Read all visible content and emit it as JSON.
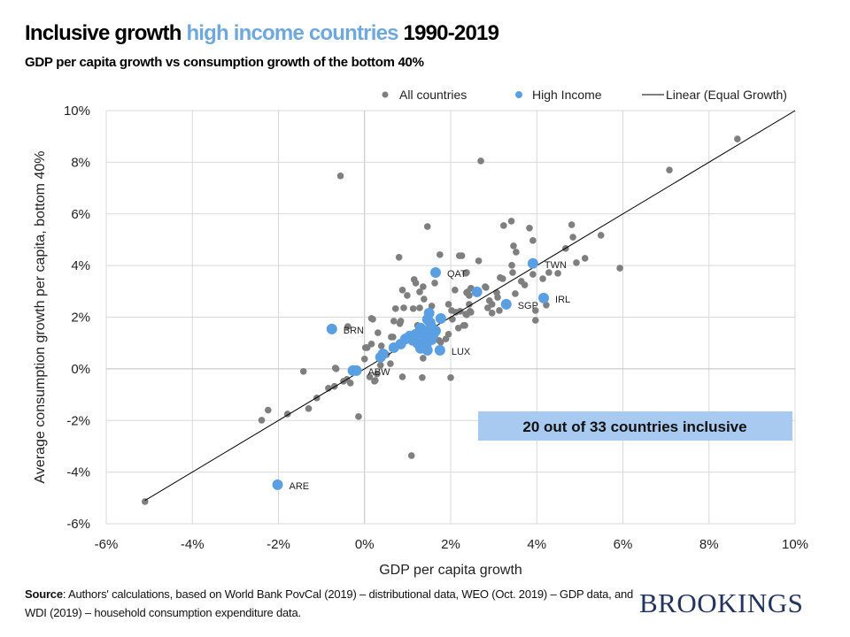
{
  "header": {
    "title_part1": "Inclusive growth ",
    "title_highlight": "high income countries",
    "title_part2": " 1990-2019",
    "subtitle": "GDP per capita growth vs consumption growth of the bottom 40%"
  },
  "footer": {
    "source_label": "Source",
    "source_text": ": Authors' calculations, based on World Bank PovCal (2019) – distributional data, WEO (Oct. 2019) – GDP data, and WDI (2019) – household consumption expenditure data.",
    "logo": "BROOKINGS"
  },
  "chart_data": {
    "type": "scatter",
    "title": "Inclusive growth high income countries 1990-2019",
    "subtitle": "GDP per capita growth vs consumption growth of the bottom 40%",
    "xlabel": "GDP per capita growth",
    "ylabel": "Average consumption growth per capita, bottom 40%",
    "xlim": [
      -6,
      10
    ],
    "ylim": [
      -6,
      10
    ],
    "x_ticks": [
      "-6%",
      "-4%",
      "-2%",
      "0%",
      "2%",
      "4%",
      "6%",
      "8%",
      "10%"
    ],
    "y_ticks": [
      "-6%",
      "-4%",
      "-2%",
      "0%",
      "2%",
      "4%",
      "6%",
      "8%",
      "10%"
    ],
    "grid": true,
    "legend_position": "top",
    "colors": {
      "all": "#7f7f7f",
      "high_income": "#5b9fe3",
      "line": "#000000",
      "annotation_bg": "#a8c9f0",
      "title_highlight": "#6fa8dc"
    },
    "annotation": "20 out of 33 countries inclusive",
    "series": [
      {
        "name": "All countries",
        "points": [
          [
            -0.56,
            7.47
          ],
          [
            2.7,
            8.05
          ],
          [
            7.08,
            7.7
          ],
          [
            8.66,
            8.9
          ],
          [
            5.93,
            3.9
          ],
          [
            5.49,
            5.17
          ],
          [
            1.09,
            -3.36
          ],
          [
            -0.14,
            -1.85
          ],
          [
            -5.1,
            -5.14
          ],
          [
            -2.39,
            -1.99
          ],
          [
            -2.24,
            -1.6
          ],
          [
            -1.79,
            -1.75
          ],
          [
            -1.3,
            -1.54
          ],
          [
            -1.11,
            -1.13
          ],
          [
            -1.42,
            -0.1
          ],
          [
            -0.84,
            -0.75
          ],
          [
            -0.7,
            -0.68
          ],
          [
            -0.68,
            0.03
          ],
          [
            -0.49,
            -0.48
          ],
          [
            -0.41,
            -0.41
          ],
          [
            -0.33,
            -0.55
          ],
          [
            0.23,
            -0.48
          ],
          [
            0.29,
            -0.2
          ],
          [
            0.88,
            -0.31
          ],
          [
            1.34,
            -0.34
          ],
          [
            2.0,
            -0.34
          ],
          [
            -0.76,
            1.47
          ],
          [
            -0.39,
            1.64
          ],
          [
            0.16,
            1.95
          ],
          [
            0.02,
            0.82
          ],
          [
            0.8,
            4.32
          ],
          [
            1.46,
            5.51
          ],
          [
            1.75,
            4.42
          ],
          [
            2.2,
            4.38
          ],
          [
            2.65,
            4.18
          ],
          [
            2.37,
            3.73
          ],
          [
            3.23,
            5.55
          ],
          [
            3.41,
            5.72
          ],
          [
            3.83,
            5.45
          ],
          [
            3.91,
            4.97
          ],
          [
            4.81,
            5.58
          ],
          [
            4.84,
            5.1
          ],
          [
            4.67,
            4.66
          ],
          [
            3.46,
            4.76
          ],
          [
            3.52,
            4.52
          ],
          [
            3.42,
            4.01
          ],
          [
            3.44,
            3.73
          ],
          [
            3.91,
            3.66
          ],
          [
            4.28,
            3.73
          ],
          [
            4.49,
            3.7
          ],
          [
            4.92,
            4.11
          ],
          [
            5.12,
            4.28
          ],
          [
            4.14,
            3.49
          ],
          [
            3.64,
            3.39
          ],
          [
            3.72,
            3.25
          ],
          [
            3.15,
            3.53
          ],
          [
            3.21,
            3.49
          ],
          [
            2.82,
            3.15
          ],
          [
            3.5,
            2.91
          ],
          [
            3.07,
            2.95
          ],
          [
            3.09,
            2.77
          ],
          [
            2.37,
            2.95
          ],
          [
            2.43,
            2.84
          ],
          [
            2.9,
            2.64
          ],
          [
            2.96,
            2.5
          ],
          [
            2.86,
            2.36
          ],
          [
            3.13,
            2.26
          ],
          [
            2.96,
            2.16
          ],
          [
            2.45,
            2.23
          ],
          [
            2.35,
            2.12
          ],
          [
            3.97,
            2.26
          ],
          [
            3.97,
            1.88
          ],
          [
            4.22,
            2.47
          ],
          [
            2.33,
            1.68
          ],
          [
            2.22,
            2.23
          ],
          [
            2.26,
            4.38
          ],
          [
            2.35,
            3.7
          ],
          [
            1.15,
            3.46
          ],
          [
            1.19,
            3.32
          ],
          [
            1.36,
            3.18
          ],
          [
            1.63,
            3.32
          ],
          [
            0.88,
            3.05
          ],
          [
            1.28,
            2.98
          ],
          [
            0.99,
            2.84
          ],
          [
            2.1,
            3.05
          ],
          [
            2.39,
            2.98
          ],
          [
            2.47,
            3.12
          ],
          [
            2.8,
            3.18
          ],
          [
            1.38,
            2.7
          ],
          [
            1.56,
            2.43
          ],
          [
            1.95,
            2.5
          ],
          [
            2.43,
            2.5
          ],
          [
            0.72,
            2.33
          ],
          [
            0.91,
            2.36
          ],
          [
            1.13,
            2.33
          ],
          [
            1.28,
            2.36
          ],
          [
            2.02,
            2.26
          ],
          [
            2.12,
            2.19
          ],
          [
            2.37,
            2.09
          ],
          [
            2.47,
            2.19
          ],
          [
            0.19,
            1.92
          ],
          [
            0.68,
            1.85
          ],
          [
            0.84,
            1.85
          ],
          [
            0.82,
            1.75
          ],
          [
            1.23,
            1.68
          ],
          [
            2.04,
            1.92
          ],
          [
            2.3,
            1.68
          ],
          [
            2.18,
            1.58
          ],
          [
            1.95,
            1.34
          ],
          [
            1.89,
            1.16
          ],
          [
            0.62,
            1.23
          ],
          [
            0.06,
            0.82
          ],
          [
            0.39,
            0.89
          ],
          [
            1.73,
            1.1
          ],
          [
            1.77,
            1.03
          ],
          [
            0.0,
            0.38
          ],
          [
            -0.66,
            0.0
          ],
          [
            1.36,
            0.41
          ],
          [
            0.25,
            -0.45
          ],
          [
            0.12,
            -0.31
          ],
          [
            0.51,
            0.55
          ],
          [
            0.37,
            0.14
          ],
          [
            0.6,
            0.2
          ],
          [
            0.16,
            0.96
          ],
          [
            0.31,
            1.4
          ],
          [
            0.66,
            1.23
          ]
        ]
      },
      {
        "name": "High Income",
        "points": [
          [
            1.65,
            3.73
          ],
          [
            2.61,
            2.98
          ],
          [
            3.29,
            2.5
          ],
          [
            3.91,
            4.08
          ],
          [
            4.16,
            2.74
          ],
          [
            -0.76,
            1.54
          ],
          [
            1.75,
            0.72
          ],
          [
            -0.27,
            -0.07
          ],
          [
            -0.19,
            -0.07
          ],
          [
            -2.02,
            -4.49
          ],
          [
            1.77,
            1.95
          ],
          [
            1.5,
            2.16
          ],
          [
            1.46,
            1.92
          ],
          [
            1.54,
            1.68
          ],
          [
            1.3,
            1.58
          ],
          [
            1.65,
            1.47
          ],
          [
            1.19,
            1.34
          ],
          [
            1.4,
            1.23
          ],
          [
            1.56,
            1.13
          ],
          [
            1.05,
            1.27
          ],
          [
            0.95,
            1.16
          ],
          [
            1.23,
            0.99
          ],
          [
            1.44,
            0.96
          ],
          [
            1.3,
            0.79
          ],
          [
            1.46,
            0.72
          ],
          [
            0.84,
            0.96
          ],
          [
            0.68,
            0.82
          ],
          [
            0.43,
            0.58
          ],
          [
            0.37,
            0.45
          ],
          [
            1.6,
            1.34
          ],
          [
            1.52,
            1.8
          ],
          [
            1.12,
            1.1
          ],
          [
            1.38,
            1.45
          ]
        ]
      },
      {
        "name": "Linear (Equal Growth)",
        "type": "line",
        "points": [
          [
            -5.1,
            -5.1
          ],
          [
            10,
            10
          ]
        ]
      }
    ],
    "point_labels": [
      {
        "label": "QAT",
        "x": 1.65,
        "y": 3.73
      },
      {
        "label": "TWN",
        "x": 3.91,
        "y": 4.08
      },
      {
        "label": "IRL",
        "x": 4.16,
        "y": 2.74
      },
      {
        "label": "SGP",
        "x": 3.29,
        "y": 2.5
      },
      {
        "label": "BRN",
        "x": -0.76,
        "y": 1.54
      },
      {
        "label": "LUX",
        "x": 1.75,
        "y": 0.72
      },
      {
        "label": "ABW",
        "x": -0.19,
        "y": -0.07
      },
      {
        "label": "ARE",
        "x": -2.02,
        "y": -4.49
      }
    ]
  }
}
